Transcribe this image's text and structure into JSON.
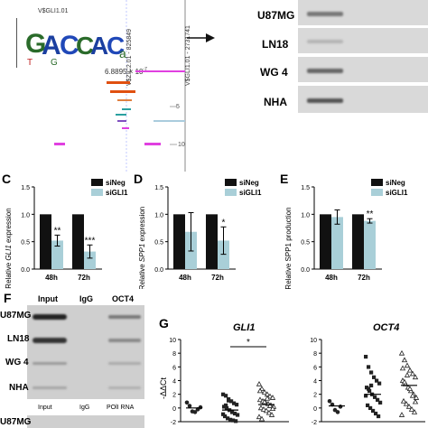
{
  "panelA": {
    "motif_label": "V$GLI1.01",
    "track_label_1": "V$ZIC2.01 - 825849",
    "track_label_2": "V$GLI1.01 - 2731741",
    "pvalue": "6.8895 × 10",
    "pvalue_exp": "-7",
    "tick_5": "5",
    "tick_10": "10"
  },
  "panelB": {
    "rows": [
      "U87MG",
      "LN18",
      "WG 4",
      "NHA"
    ]
  },
  "panelC": {
    "label": "C",
    "ylabel_prefix": "Relative ",
    "ylabel_gene": "GLI1",
    "ylabel_suffix": " expression",
    "legend": [
      "siNeg",
      "siGLI1"
    ],
    "sig": [
      "**",
      "***"
    ]
  },
  "panelD": {
    "label": "D",
    "ylabel_prefix": "Relative ",
    "ylabel_gene": "SPP1",
    "ylabel_suffix": " expression",
    "legend": [
      "siNeg",
      "siGLI1"
    ],
    "sig": [
      "",
      "*"
    ]
  },
  "panelE": {
    "label": "E",
    "ylabel": "Relative SPP1 production",
    "legend": [
      "siNeg",
      "siGLI1"
    ],
    "sig": [
      "",
      "**"
    ]
  },
  "panelF": {
    "label": "F",
    "columns": [
      "Input",
      "IgG",
      "OCT4"
    ],
    "rows": [
      "U87MG",
      "LN18",
      "WG 4",
      "NHA"
    ],
    "bottom_labels": [
      "Input",
      "IgG",
      "POlI RNA"
    ],
    "extra_row": "U87MG"
  },
  "panelG": {
    "label": "G",
    "title_left": "GLI1",
    "title_right": "OCT4",
    "ylabel": "-ΔΔCt",
    "sig": "*"
  },
  "colors": {
    "black_bar": "#111111",
    "blue_bar": "#a9cfd8",
    "gel_bg": "#d8d8d8"
  },
  "chart_data": [
    {
      "type": "bar",
      "panel": "C",
      "categories": [
        "48h",
        "72h"
      ],
      "series": [
        {
          "name": "siNeg",
          "values": [
            1.0,
            1.0
          ]
        },
        {
          "name": "siGLI1",
          "values": [
            0.52,
            0.32
          ]
        }
      ],
      "errors": [
        [
          0,
          0
        ],
        [
          0.1,
          0.12
        ]
      ],
      "yticks": [
        "0.0",
        "0.5",
        "1.0",
        "1.5"
      ],
      "ylim": [
        0,
        1.5
      ]
    },
    {
      "type": "bar",
      "panel": "D",
      "categories": [
        "48h",
        "72h"
      ],
      "series": [
        {
          "name": "siNeg",
          "values": [
            1.0,
            1.0
          ]
        },
        {
          "name": "siGLI1",
          "values": [
            0.68,
            0.52
          ]
        }
      ],
      "errors": [
        [
          0,
          0
        ],
        [
          0.35,
          0.25
        ]
      ],
      "yticks": [
        "0.0",
        "0.5",
        "1.0",
        "1.5"
      ],
      "ylim": [
        0,
        1.5
      ]
    },
    {
      "type": "bar",
      "panel": "E",
      "categories": [
        "48h",
        "72h"
      ],
      "series": [
        {
          "name": "siNeg",
          "values": [
            1.0,
            1.0
          ]
        },
        {
          "name": "siGLI1",
          "values": [
            0.95,
            0.88
          ]
        }
      ],
      "errors": [
        [
          0,
          0
        ],
        [
          0.13,
          0.04
        ]
      ],
      "yticks": [
        "0.0",
        "0.5",
        "1.0",
        "1.5"
      ],
      "ylim": [
        0,
        1.5
      ]
    },
    {
      "type": "scatter",
      "panel": "G",
      "ylim": [
        -2,
        10
      ],
      "yticks": [
        "10",
        "8",
        "6",
        "4",
        "2",
        "0",
        "-2"
      ],
      "groups": [
        {
          "marker": "circle",
          "center": 0.0,
          "values": [
            0.8,
            0.3,
            -0.5,
            -0.6,
            -0.2,
            0.1
          ]
        },
        {
          "marker": "square",
          "center": -0.3,
          "values": [
            2.0,
            1.8,
            1.3,
            1.0,
            0.7,
            0.5,
            0.2,
            0.0,
            -0.3,
            -0.6,
            -0.8,
            -1.0,
            -1.2,
            -1.5,
            -1.7,
            -1.8,
            -1.9,
            -0.9,
            0.4,
            1.1
          ]
        },
        {
          "marker": "triangle",
          "center": 0.5,
          "values": [
            3.5,
            2.8,
            2.3,
            2.0,
            1.7,
            1.5,
            1.2,
            1.0,
            0.8,
            0.6,
            0.4,
            0.2,
            0.0,
            -0.2,
            -0.4,
            -0.7,
            -1.0,
            -1.3,
            -1.6,
            0.9,
            1.4,
            0.3,
            -0.1,
            2.5
          ]
        },
        {
          "marker": "circle",
          "center": 0.3,
          "values": [
            1.0,
            0.5,
            -0.3,
            -0.6,
            0.2
          ]
        },
        {
          "marker": "square",
          "center": 2.0,
          "values": [
            7.5,
            6.0,
            5.2,
            4.5,
            4.0,
            3.6,
            3.0,
            2.5,
            2.0,
            1.6,
            1.2,
            0.8,
            0.4,
            0.0,
            -0.4,
            -0.8,
            -1.2,
            1.8,
            2.8,
            3.3
          ]
        },
        {
          "marker": "triangle",
          "center": 3.3,
          "values": [
            8.0,
            7.0,
            6.2,
            5.5,
            5.0,
            4.5,
            4.0,
            3.5,
            3.0,
            2.5,
            2.0,
            1.5,
            1.0,
            0.6,
            0.2,
            -0.2,
            -0.6,
            -1.0,
            3.8,
            4.8,
            2.8,
            1.8,
            0.9,
            5.8
          ]
        }
      ]
    }
  ]
}
